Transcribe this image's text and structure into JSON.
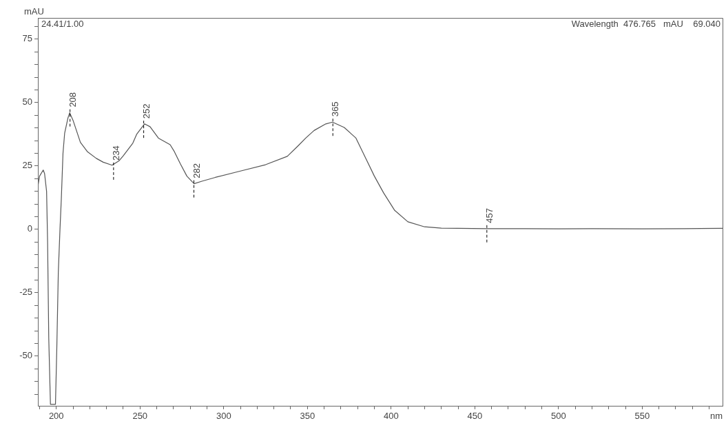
{
  "chart_data": {
    "type": "line",
    "xlabel": "nm",
    "ylabel": "mAU",
    "annotations": [
      "24.41/1.00",
      "Wavelength  476.765   mAU    69.040",
      {
        "text": "208",
        "x": 208,
        "y": 46
      },
      {
        "text": "234",
        "x": 234,
        "y": 25
      },
      {
        "text": "252",
        "x": 252,
        "y": 41.5
      },
      {
        "text": "282",
        "x": 282,
        "y": 18
      },
      {
        "text": "365",
        "x": 365,
        "y": 42.3
      },
      {
        "text": "457",
        "x": 457,
        "y": 0.3
      }
    ],
    "series": [
      {
        "color": "#555555",
        "x": [
          189,
          190,
          192.2,
          193,
          194.2,
          194.8,
          195.5,
          196.5,
          199.5,
          200.3,
          201.2,
          202.2,
          203,
          204,
          205,
          207,
          208,
          210,
          214.4,
          218.5,
          223.9,
          228,
          233.3,
          237.4,
          240,
          245.7,
          248,
          252.7,
          256,
          261,
          268,
          270.5,
          274,
          278,
          282.3,
          287,
          295,
          310,
          325,
          338,
          344.5,
          349,
          354,
          361,
          365,
          372,
          379,
          385.6,
          390,
          395.5,
          402,
          410,
          420,
          430,
          440,
          457,
          480,
          500,
          520,
          550,
          575,
          598
        ],
        "values": [
          17,
          21,
          23.4,
          22,
          15,
          -5,
          -43,
          -69,
          -69,
          -47,
          -17,
          0,
          12,
          30,
          38,
          44,
          46,
          43,
          34.3,
          30.7,
          28,
          26.5,
          25.3,
          27,
          29,
          34,
          37.5,
          41.6,
          40.5,
          36,
          33.4,
          30.7,
          26,
          21,
          18,
          19,
          20.5,
          23,
          25.5,
          28.8,
          33,
          36,
          39,
          41.6,
          42.3,
          40.2,
          36,
          27,
          21,
          14.4,
          7.6,
          3,
          1,
          0.5,
          0.4,
          0.3,
          0.3,
          0.2,
          0.3,
          0.2,
          0.3,
          0.4
        ]
      }
    ],
    "xlim": [
      189,
      598
    ],
    "ylim": [
      -69.6,
      83.4
    ],
    "xticks": [
      {
        "value": 190,
        "label": null
      },
      200,
      {
        "value": 210,
        "label": null
      },
      {
        "value": 220,
        "label": null
      },
      {
        "value": 230,
        "label": null
      },
      {
        "value": 240,
        "label": null
      },
      250,
      {
        "value": 260,
        "label": null
      },
      {
        "value": 270,
        "label": null
      },
      {
        "value": 280,
        "label": null
      },
      {
        "value": 290,
        "label": null
      },
      300,
      {
        "value": 310,
        "label": null
      },
      {
        "value": 320,
        "label": null
      },
      {
        "value": 330,
        "label": null
      },
      {
        "value": 340,
        "label": null
      },
      350,
      {
        "value": 360,
        "label": null
      },
      {
        "value": 370,
        "label": null
      },
      {
        "value": 380,
        "label": null
      },
      {
        "value": 390,
        "label": null
      },
      400,
      {
        "value": 410,
        "label": null
      },
      {
        "value": 420,
        "label": null
      },
      {
        "value": 430,
        "label": null
      },
      {
        "value": 440,
        "label": null
      },
      450,
      {
        "value": 460,
        "label": null
      },
      {
        "value": 470,
        "label": null
      },
      {
        "value": 480,
        "label": null
      },
      {
        "value": 490,
        "label": null
      },
      500,
      {
        "value": 510,
        "label": null
      },
      {
        "value": 520,
        "label": null
      },
      {
        "value": 530,
        "label": null
      },
      {
        "value": 540,
        "label": null
      },
      550,
      {
        "value": 560,
        "label": null
      },
      {
        "value": 570,
        "label": null
      },
      {
        "value": 580,
        "label": null
      },
      {
        "value": 590,
        "label": null
      }
    ],
    "yticks": [
      {
        "value": -65,
        "label": null
      },
      {
        "value": -60,
        "label": null
      },
      {
        "value": -55,
        "label": null
      },
      -50,
      {
        "value": -45,
        "label": null
      },
      {
        "value": -40,
        "label": null
      },
      {
        "value": -35,
        "label": null
      },
      {
        "value": -30,
        "label": null
      },
      -25,
      {
        "value": -20,
        "label": null
      },
      {
        "value": -15,
        "label": null
      },
      {
        "value": -10,
        "label": null
      },
      {
        "value": -5,
        "label": null
      },
      0,
      {
        "value": 5,
        "label": null
      },
      {
        "value": 10,
        "label": null
      },
      {
        "value": 15,
        "label": null
      },
      {
        "value": 20,
        "label": null
      },
      25,
      {
        "value": 30,
        "label": null
      },
      {
        "value": 35,
        "label": null
      },
      {
        "value": 40,
        "label": null
      },
      {
        "value": 45,
        "label": null
      },
      50,
      {
        "value": 55,
        "label": null
      },
      {
        "value": 60,
        "label": null
      },
      {
        "value": 65,
        "label": null
      },
      {
        "value": 70,
        "label": null
      },
      75,
      {
        "value": 80,
        "label": null
      }
    ],
    "grid": false,
    "legend": false,
    "marker": "none",
    "line_style": "solid"
  }
}
